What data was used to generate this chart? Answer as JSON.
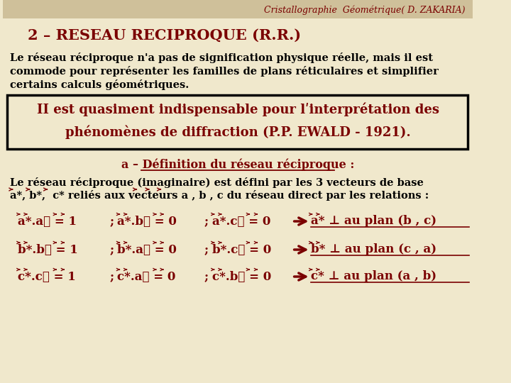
{
  "bg_color": "#f0e8cc",
  "header_color": "#cfc09a",
  "dark_red": "#7a0000",
  "black": "#000000",
  "title_top": "Cristallographie  Géométrique( D. ZAKARIA)",
  "section_title": "2 – RESEAU RECIPROQUE (R.R.)",
  "para1_lines": [
    "Le réseau réciproque n'a pas de signification physique réelle, mais il est",
    "commode pour représenter les familles de plans réticulaires et simplifier",
    "certains calculs géométriques."
  ],
  "box_line1": "II est quasiment indispensable pour lʹinterprétation des",
  "box_line2": "phénomènes de diffraction (P.P. EWALD - 1921).",
  "def_title": "a – Définition du réseau réciproque :",
  "para2_line1": "Le réseau réciproque (imaginaire) est défini par les 3 vecteurs de base",
  "para2_line2": "a*, b*, c* reliés aux vecteurs a , b , c du réseau direct par les relations :"
}
